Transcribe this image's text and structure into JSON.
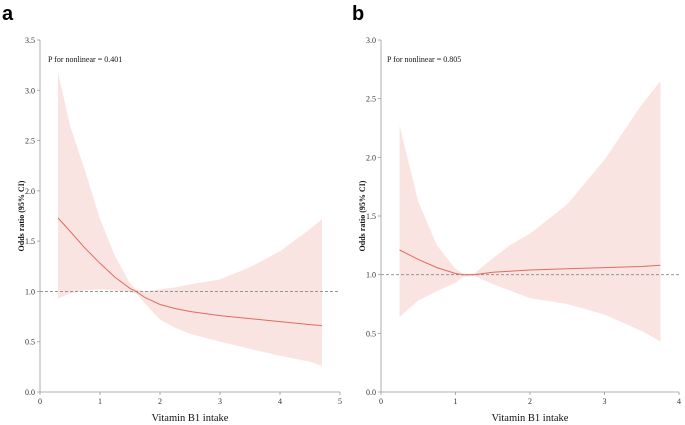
{
  "colors": {
    "band": "#f9e4e1",
    "line": "#e26a62",
    "ref": "#888888",
    "axis": "#999999"
  },
  "chart_data": [
    {
      "panel": "a",
      "type": "line",
      "title": "",
      "xlabel": "Vitamin B1 intake",
      "ylabel": "Odds ratio (95% CI)",
      "annotation": "P for nonlinear = 0.401",
      "xlim": [
        0,
        5
      ],
      "ylim": [
        0,
        3.5
      ],
      "xticks": [
        0,
        1,
        2,
        3,
        4,
        5
      ],
      "yticks": [
        "0.0",
        "0.5",
        "1.0",
        "1.5",
        "2.0",
        "2.5",
        "3.0",
        "3.5"
      ],
      "reference_line": 1.0,
      "x": [
        0.3,
        0.5,
        0.75,
        1.0,
        1.25,
        1.5,
        1.6,
        1.75,
        2.0,
        2.25,
        2.5,
        3.0,
        3.5,
        4.0,
        4.5,
        4.7
      ],
      "estimate": [
        1.73,
        1.6,
        1.43,
        1.28,
        1.14,
        1.03,
        1.0,
        0.94,
        0.87,
        0.83,
        0.8,
        0.76,
        0.73,
        0.7,
        0.67,
        0.66
      ],
      "lower": [
        0.93,
        0.98,
        1.01,
        1.02,
        1.01,
        0.99,
        0.98,
        0.88,
        0.72,
        0.64,
        0.58,
        0.5,
        0.43,
        0.36,
        0.3,
        0.26
      ],
      "upper": [
        3.18,
        2.65,
        2.2,
        1.72,
        1.35,
        1.08,
        1.02,
        1.0,
        1.02,
        1.04,
        1.07,
        1.12,
        1.24,
        1.4,
        1.62,
        1.72
      ]
    },
    {
      "panel": "b",
      "type": "line",
      "title": "",
      "xlabel": "Vitamin B1 intake",
      "ylabel": "Odds ratio (95% CI)",
      "annotation": "P for nonlinear = 0.805",
      "xlim": [
        0,
        4
      ],
      "ylim": [
        0,
        3.0
      ],
      "xticks": [
        0,
        1,
        2,
        3,
        4
      ],
      "yticks": [
        "0.0",
        "0.5",
        "1.0",
        "1.5",
        "2.0",
        "2.5",
        "3.0"
      ],
      "reference_line": 1.0,
      "x": [
        0.25,
        0.5,
        0.75,
        1.0,
        1.1,
        1.25,
        1.5,
        1.75,
        2.0,
        2.5,
        3.0,
        3.5,
        3.75
      ],
      "estimate": [
        1.21,
        1.13,
        1.06,
        1.01,
        1.0,
        1.0,
        1.02,
        1.03,
        1.04,
        1.05,
        1.06,
        1.07,
        1.08
      ],
      "lower": [
        0.64,
        0.78,
        0.86,
        0.93,
        0.98,
        0.99,
        0.92,
        0.86,
        0.8,
        0.75,
        0.66,
        0.52,
        0.43
      ],
      "upper": [
        2.27,
        1.62,
        1.25,
        1.05,
        1.01,
        1.01,
        1.14,
        1.26,
        1.35,
        1.6,
        1.98,
        2.45,
        2.65
      ]
    }
  ]
}
